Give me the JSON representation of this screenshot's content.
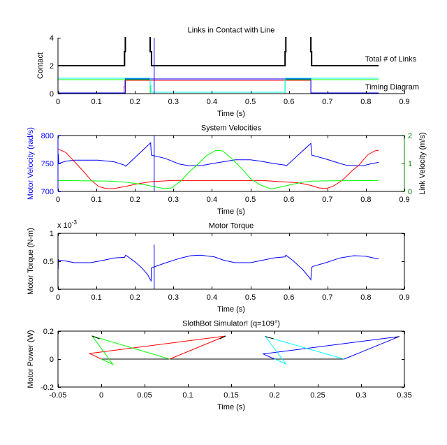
{
  "chart_data": [
    {
      "key": "contact",
      "type": "line",
      "title": "Links in Contact with Line",
      "xlabel": "Time (s)",
      "ylabel": "Contact",
      "box": false,
      "grid": false,
      "xlim": [
        0,
        0.9
      ],
      "ylim": [
        0,
        4
      ],
      "xticks": [
        0,
        0.1,
        0.2,
        0.3,
        0.4,
        0.5,
        0.6,
        0.7,
        0.8,
        0.9
      ],
      "xtick_labels": [
        "0",
        "0.1",
        "0.2",
        "0.3",
        "0.4",
        "0.5",
        "0.6",
        "0.7",
        "0.8",
        "0.9"
      ],
      "yticks": [
        0,
        2,
        4
      ],
      "ytick_labels": [
        "0",
        "2",
        "4"
      ],
      "annotations": [
        {
          "text": "Total # of Links",
          "x": 0.798,
          "y": 2.5
        },
        {
          "text": "Timing Diagram",
          "x": 0.798,
          "y": 0.5
        }
      ],
      "series": [
        {
          "key": "total-links",
          "name": "Total # of Links",
          "color": "#000000",
          "x": [
            0,
            0.173,
            0.173,
            0.175,
            0.175,
            0.2395,
            0.2395,
            0.243,
            0.243,
            0.59,
            0.59,
            0.592,
            0.592,
            0.657,
            0.657,
            0.659,
            0.659,
            0.833
          ],
          "y": [
            2,
            2,
            3,
            3,
            5,
            5,
            3,
            3,
            2,
            2,
            3,
            3,
            5,
            5,
            3,
            3,
            2,
            2
          ]
        },
        {
          "key": "link-red",
          "name": "Link (red)",
          "color": "#ff0000",
          "x": [
            0,
            0.172,
            0.172,
            0.174,
            0.174,
            0.657,
            0.657,
            0.833
          ],
          "y": [
            0,
            0,
            0.5,
            0.5,
            0.95,
            0.95,
            0,
            0
          ]
        },
        {
          "key": "link-blue",
          "name": "Link (blue)",
          "color": "#0000ff",
          "x": [
            0,
            0.175,
            0.175,
            0.657,
            0.657,
            0.833
          ],
          "y": [
            0.05,
            0.05,
            1.05,
            1.05,
            0.05,
            0.05
          ]
        },
        {
          "key": "link-green",
          "name": "Link (green)",
          "color": "#00ff00",
          "x": [
            0,
            0.2395,
            0.2395,
            0.59,
            0.59,
            0.833
          ],
          "y": [
            1,
            1,
            0,
            0,
            1,
            1
          ]
        },
        {
          "key": "link-cyan",
          "name": "Link (cyan)",
          "color": "#00ffff",
          "x": [
            0,
            0.2395,
            0.2395,
            0.2415,
            0.2415,
            0.59,
            0.59,
            0.833
          ],
          "y": [
            1.1,
            1.1,
            0.6,
            0.6,
            0.1,
            0.1,
            1.1,
            1.1
          ]
        },
        {
          "key": "time-marker",
          "name": "Current time",
          "color": "#0000ff",
          "x": [
            0.25,
            0.25
          ],
          "y": [
            0,
            4
          ]
        }
      ]
    },
    {
      "key": "velocities",
      "type": "line",
      "title": "System Velocities",
      "xlabel": "Time (s)",
      "ylabel": "Motor Velocity (rad/s)",
      "ylabel_right": "Link Velocity (m/s)",
      "box": true,
      "grid": false,
      "left_axis_color": "#0000ff",
      "right_axis_color": "#008000",
      "xlim": [
        0,
        0.9
      ],
      "ylim": [
        700,
        800
      ],
      "ylim_right": [
        0,
        2
      ],
      "xticks": [
        0,
        0.1,
        0.2,
        0.3,
        0.4,
        0.5,
        0.6,
        0.7,
        0.8,
        0.9
      ],
      "xtick_labels": [
        "0",
        "0.1",
        "0.2",
        "0.3",
        "0.4",
        "0.5",
        "0.6",
        "0.7",
        "0.8",
        "0.9"
      ],
      "yticks": [
        700,
        750,
        800
      ],
      "ytick_labels": [
        "700",
        "750",
        "800"
      ],
      "yticks_right": [
        0,
        1,
        2
      ],
      "ytick_labels_right": [
        "0",
        "1",
        "2"
      ],
      "series": [
        {
          "key": "motor-velocity",
          "name": "Motor Velocity",
          "axis": "left",
          "color": "#0000ff",
          "x": [
            0,
            0.001,
            0.002,
            0.02,
            0.043,
            0.103,
            0.146,
            0.173,
            0.176,
            0.2408,
            0.2425,
            0.279,
            0.315,
            0.339,
            0.375,
            0.411,
            0.447,
            0.46,
            0.5,
            0.527,
            0.56,
            0.59,
            0.593,
            0.657,
            0.659,
            0.696,
            0.733,
            0.751,
            0.793,
            0.811,
            0.833
          ],
          "y": [
            750,
            767,
            750,
            754,
            756,
            756,
            753,
            747,
            745,
            787,
            765,
            759,
            749,
            746,
            746.5,
            751,
            755,
            756.5,
            756.5,
            754,
            750,
            747,
            745.5,
            786,
            765,
            758,
            750,
            746.5,
            746,
            749,
            752
          ]
        },
        {
          "key": "link-velocity-red",
          "name": "Link Velocity (red)",
          "axis": "right",
          "color": "#ff0000",
          "x": [
            0,
            0.021,
            0.039,
            0.064,
            0.085,
            0.106,
            0.127,
            0.145,
            0.176,
            0.206,
            0.242,
            0.297,
            0.533,
            0.576,
            0.624,
            0.654,
            0.678,
            0.696,
            0.714,
            0.738,
            0.763,
            0.781,
            0.805,
            0.823,
            0.833
          ],
          "y": [
            1.52,
            1.39,
            1.12,
            0.75,
            0.42,
            0.17,
            0.1,
            0.1,
            0.18,
            0.27,
            0.35,
            0.39,
            0.39,
            0.35,
            0.31,
            0.225,
            0.125,
            0.1,
            0.18,
            0.39,
            0.725,
            0.93,
            1.31,
            1.45,
            1.47
          ]
        },
        {
          "key": "link-velocity-green",
          "name": "Link Velocity (green)",
          "axis": "right",
          "color": "#00ff00",
          "x": [
            0,
            0.133,
            0.176,
            0.224,
            0.253,
            0.277,
            0.295,
            0.319,
            0.343,
            0.367,
            0.385,
            0.41,
            0.428,
            0.454,
            0.478,
            0.502,
            0.527,
            0.551,
            0.563,
            0.6,
            0.636,
            0.66,
            0.714,
            0.833
          ],
          "y": [
            0.39,
            0.37,
            0.33,
            0.24,
            0.16,
            0.1,
            0.125,
            0.37,
            0.725,
            1.02,
            1.27,
            1.47,
            1.45,
            1.14,
            0.81,
            0.43,
            0.225,
            0.1,
            0.11,
            0.225,
            0.33,
            0.37,
            0.38,
            0.39
          ]
        },
        {
          "key": "time-marker",
          "name": "Current time",
          "axis": "left",
          "color": "#0000ff",
          "x": [
            0.25,
            0.25
          ],
          "y": [
            700,
            800
          ]
        }
      ]
    },
    {
      "key": "torque",
      "type": "line",
      "title": "Motor Torque",
      "xlabel": "Time (s)",
      "ylabel": "Motor Torque (N-m)",
      "y_multiplier_label": "x 10",
      "y_exponent": "-3",
      "box": true,
      "grid": false,
      "xlim": [
        0,
        0.9
      ],
      "ylim": [
        0,
        1
      ],
      "xticks": [
        0,
        0.1,
        0.2,
        0.3,
        0.4,
        0.5,
        0.6,
        0.7,
        0.8,
        0.9
      ],
      "xtick_labels": [
        "0",
        "0.1",
        "0.2",
        "0.3",
        "0.4",
        "0.5",
        "0.6",
        "0.7",
        "0.8",
        "0.9"
      ],
      "yticks": [
        0,
        0.5,
        1
      ],
      "ytick_labels": [
        "0",
        "0.5",
        "1"
      ],
      "series": [
        {
          "key": "motor-torque",
          "name": "Motor Torque",
          "color": "#0000ff",
          "x": [
            0,
            0.0005,
            0.001,
            0.003,
            0.024,
            0.042,
            0.085,
            0.12,
            0.146,
            0.173,
            0.176,
            0.2,
            0.218,
            0.233,
            0.24,
            0.242,
            0.2425,
            0.25,
            0.279,
            0.315,
            0.345,
            0.37,
            0.406,
            0.43,
            0.46,
            0.5,
            0.533,
            0.56,
            0.59,
            0.592,
            0.611,
            0.636,
            0.653,
            0.657,
            0.659,
            0.663,
            0.696,
            0.733,
            0.769,
            0.799,
            0.833
          ],
          "y": [
            0.5,
            0.36,
            0.53,
            0.52,
            0.5,
            0.475,
            0.475,
            0.52,
            0.56,
            0.57,
            0.61,
            0.49,
            0.38,
            0.26,
            0.17,
            0.15,
            0.38,
            0.4,
            0.47,
            0.55,
            0.6,
            0.61,
            0.58,
            0.52,
            0.475,
            0.475,
            0.52,
            0.56,
            0.58,
            0.61,
            0.51,
            0.35,
            0.21,
            0.17,
            0.39,
            0.41,
            0.475,
            0.56,
            0.6,
            0.59,
            0.54
          ]
        },
        {
          "key": "time-marker",
          "name": "Current time",
          "color": "#0000ff",
          "x": [
            0.25,
            0.25
          ],
          "y": [
            0,
            0.8
          ]
        }
      ]
    },
    {
      "key": "simulator",
      "type": "line",
      "title": "SlothBot Simulator!  (q=109°)",
      "xlabel": "Time (s)",
      "ylabel": "Motor Power (W)",
      "box": true,
      "grid": false,
      "xlim": [
        -0.05,
        0.35
      ],
      "ylim": [
        -0.2,
        0.2
      ],
      "xticks": [
        -0.05,
        0,
        0.05,
        0.1,
        0.15,
        0.2,
        0.25,
        0.3,
        0.35
      ],
      "xtick_labels": [
        "-0.05",
        "0",
        "0.05",
        "0.1",
        "0.15",
        "0.2",
        "0.25",
        "0.3",
        "0.35"
      ],
      "yticks": [
        -0.2,
        0,
        0.2
      ],
      "ytick_labels": [
        "-0.2",
        "0",
        "0.2"
      ],
      "series": [
        {
          "key": "line-baseline",
          "name": "Line",
          "color": "#000000",
          "x": [
            0,
            0.28
          ],
          "y": [
            0,
            0
          ]
        },
        {
          "key": "robot1-red-a",
          "name": "Robot 1 link (red)",
          "color": "#ff0000",
          "x": [
            0.1435,
            -0.0135,
            0.0
          ],
          "y": [
            0.165,
            0.04,
            0.0
          ]
        },
        {
          "key": "robot1-red-b",
          "name": "Robot 1 link (red)",
          "color": "#ff0000",
          "x": [
            0.079,
            0.1435
          ],
          "y": [
            0.0,
            0.165
          ]
        },
        {
          "key": "robot1-green",
          "name": "Robot 1 link (green)",
          "color": "#00ff00",
          "x": [
            0.0,
            0.0135,
            -0.0105,
            0.079
          ],
          "y": [
            0.0,
            -0.0385,
            0.165,
            0.0
          ]
        },
        {
          "key": "robot1-black-a",
          "name": "Robot 1 body",
          "color": "#000000",
          "x": [
            -0.0105,
            -0.002
          ],
          "y": [
            0.165,
            0.145
          ]
        },
        {
          "key": "robot1-black-b",
          "name": "Robot 1 body",
          "color": "#000000",
          "x": [
            0.137,
            0.1435
          ],
          "y": [
            0.145,
            0.165
          ]
        },
        {
          "key": "robot2-blue-a",
          "name": "Robot 2 link (blue)",
          "color": "#0000ff",
          "x": [
            0.3441,
            0.1869,
            0.2002
          ],
          "y": [
            0.1615,
            0.0365,
            0.0
          ]
        },
        {
          "key": "robot2-blue-b",
          "name": "Robot 2 link (blue)",
          "color": "#0000ff",
          "x": [
            0.2804,
            0.3441
          ],
          "y": [
            0.0,
            0.1615
          ]
        },
        {
          "key": "robot2-cyan",
          "name": "Robot 2 link (cyan)",
          "color": "#00ffff",
          "x": [
            0.2002,
            0.2131,
            0.1895,
            0.2804
          ],
          "y": [
            0.0,
            -0.035,
            0.1615,
            0.0
          ]
        },
        {
          "key": "robot2-black-a",
          "name": "Robot 2 body",
          "color": "#000000",
          "x": [
            0.1895,
            0.1989
          ],
          "y": [
            0.1615,
            0.145
          ]
        },
        {
          "key": "robot2-black-b",
          "name": "Robot 2 body",
          "color": "#000000",
          "x": [
            0.3387,
            0.3441
          ],
          "y": [
            0.1535,
            0.1615
          ]
        }
      ]
    }
  ]
}
